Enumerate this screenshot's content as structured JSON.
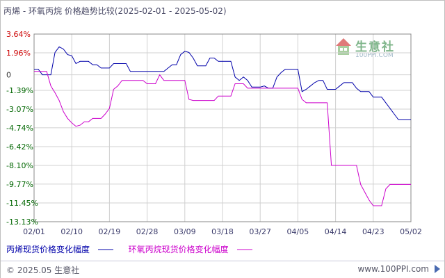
{
  "title": "丙烯 - 环氧丙烷 价格趋势比较(2025-02-01 - 2025-05-02)",
  "watermark": {
    "name": "生意社",
    "url": "100PPI.COM"
  },
  "footer": {
    "copyright": "© 2025.05 生意社",
    "url": "www.100PPI.com"
  },
  "colors": {
    "series1": "#0000aa",
    "series2": "#cc00cc",
    "grid": "#d0d0d0",
    "axis": "#888888"
  },
  "chart_data": {
    "type": "line",
    "title": "丙烯 - 环氧丙烷 价格趋势比较(2025-02-01 - 2025-05-02)",
    "xlabel": "",
    "ylabel": "",
    "x_range": [
      "02/01",
      "05/02"
    ],
    "x_ticks": [
      "02/01",
      "02/10",
      "02/19",
      "02/28",
      "03/09",
      "03/18",
      "03/27",
      "04/05",
      "04/14",
      "04/23",
      "05/02"
    ],
    "y_ticks": [
      "3.64%",
      "1.96%",
      "0",
      "-1.39%",
      "-3.07%",
      "-4.74%",
      "-6.42%",
      "-8.10%",
      "-9.77%",
      "-11.45%",
      "-13.13%"
    ],
    "ylim": [
      -13.13,
      3.64
    ],
    "grid": true,
    "legend_position": "bottom",
    "series": [
      {
        "name": "丙烯现货价格变化幅度",
        "color": "#0000aa",
        "points": [
          [
            "02/01",
            0.5
          ],
          [
            "02/02",
            0.5
          ],
          [
            "02/03",
            0.0
          ],
          [
            "02/04",
            0.0
          ],
          [
            "02/05",
            0.0
          ],
          [
            "02/06",
            2.0
          ],
          [
            "02/07",
            2.5
          ],
          [
            "02/08",
            2.3
          ],
          [
            "02/09",
            1.8
          ],
          [
            "02/10",
            1.7
          ],
          [
            "02/11",
            1.0
          ],
          [
            "02/12",
            1.2
          ],
          [
            "02/13",
            1.2
          ],
          [
            "02/14",
            1.2
          ],
          [
            "02/15",
            0.9
          ],
          [
            "02/16",
            0.9
          ],
          [
            "02/17",
            0.6
          ],
          [
            "02/18",
            0.6
          ],
          [
            "02/19",
            0.6
          ],
          [
            "02/20",
            1.0
          ],
          [
            "02/21",
            1.0
          ],
          [
            "02/22",
            1.0
          ],
          [
            "02/23",
            1.0
          ],
          [
            "02/24",
            0.3
          ],
          [
            "02/25",
            0.3
          ],
          [
            "02/26",
            0.3
          ],
          [
            "02/27",
            0.3
          ],
          [
            "02/28",
            0.3
          ],
          [
            "03/01",
            0.3
          ],
          [
            "03/02",
            0.3
          ],
          [
            "03/03",
            0.3
          ],
          [
            "03/04",
            0.3
          ],
          [
            "03/05",
            0.6
          ],
          [
            "03/06",
            0.9
          ],
          [
            "03/07",
            0.9
          ],
          [
            "03/08",
            1.8
          ],
          [
            "03/09",
            2.1
          ],
          [
            "03/10",
            2.0
          ],
          [
            "03/11",
            1.5
          ],
          [
            "03/12",
            0.8
          ],
          [
            "03/13",
            0.8
          ],
          [
            "03/14",
            0.8
          ],
          [
            "03/15",
            1.5
          ],
          [
            "03/16",
            1.5
          ],
          [
            "03/17",
            1.2
          ],
          [
            "03/18",
            1.2
          ],
          [
            "03/19",
            1.2
          ],
          [
            "03/20",
            1.2
          ],
          [
            "03/21",
            -0.2
          ],
          [
            "03/22",
            -0.5
          ],
          [
            "03/23",
            -0.2
          ],
          [
            "03/24",
            -0.5
          ],
          [
            "03/25",
            -1.1
          ],
          [
            "03/26",
            -1.1
          ],
          [
            "03/27",
            -1.1
          ],
          [
            "03/28",
            -1.0
          ],
          [
            "03/29",
            -1.2
          ],
          [
            "03/30",
            -1.2
          ],
          [
            "03/31",
            -0.2
          ],
          [
            "04/01",
            0.2
          ],
          [
            "04/02",
            0.5
          ],
          [
            "04/03",
            0.5
          ],
          [
            "04/04",
            0.5
          ],
          [
            "04/05",
            0.5
          ],
          [
            "04/06",
            -1.5
          ],
          [
            "04/07",
            -1.3
          ],
          [
            "04/08",
            -1.0
          ],
          [
            "04/09",
            -0.7
          ],
          [
            "04/10",
            -0.5
          ],
          [
            "04/11",
            -0.5
          ],
          [
            "04/12",
            -1.3
          ],
          [
            "04/13",
            -1.3
          ],
          [
            "04/14",
            -1.3
          ],
          [
            "04/15",
            -1.0
          ],
          [
            "04/16",
            -0.7
          ],
          [
            "04/17",
            -0.7
          ],
          [
            "04/18",
            -0.7
          ],
          [
            "04/19",
            -1.2
          ],
          [
            "04/20",
            -1.5
          ],
          [
            "04/21",
            -1.5
          ],
          [
            "04/22",
            -1.5
          ],
          [
            "04/23",
            -2.0
          ],
          [
            "04/24",
            -2.0
          ],
          [
            "04/25",
            -2.0
          ],
          [
            "04/26",
            -2.5
          ],
          [
            "04/27",
            -3.0
          ],
          [
            "04/28",
            -3.5
          ],
          [
            "04/29",
            -4.0
          ],
          [
            "04/30",
            -4.0
          ],
          [
            "05/01",
            -4.0
          ],
          [
            "05/02",
            -4.0
          ]
        ]
      },
      {
        "name": "环氧丙烷现货价格变化幅度",
        "color": "#cc00cc",
        "points": [
          [
            "02/01",
            0.3
          ],
          [
            "02/02",
            0.3
          ],
          [
            "02/03",
            0.3
          ],
          [
            "02/04",
            0.3
          ],
          [
            "02/05",
            -1.0
          ],
          [
            "02/06",
            -1.6
          ],
          [
            "02/07",
            -2.3
          ],
          [
            "02/08",
            -3.3
          ],
          [
            "02/09",
            -3.9
          ],
          [
            "02/10",
            -4.3
          ],
          [
            "02/11",
            -4.6
          ],
          [
            "02/12",
            -4.5
          ],
          [
            "02/13",
            -4.2
          ],
          [
            "02/14",
            -4.2
          ],
          [
            "02/15",
            -3.9
          ],
          [
            "02/16",
            -3.9
          ],
          [
            "02/17",
            -3.9
          ],
          [
            "02/18",
            -3.5
          ],
          [
            "02/19",
            -3.0
          ],
          [
            "02/20",
            -1.3
          ],
          [
            "02/21",
            -1.0
          ],
          [
            "02/22",
            -0.5
          ],
          [
            "02/23",
            -0.5
          ],
          [
            "02/24",
            -0.5
          ],
          [
            "02/25",
            -0.5
          ],
          [
            "02/26",
            -0.5
          ],
          [
            "02/27",
            -0.5
          ],
          [
            "02/28",
            -0.8
          ],
          [
            "03/01",
            -0.8
          ],
          [
            "03/02",
            -0.8
          ],
          [
            "03/03",
            0.0
          ],
          [
            "03/04",
            -0.5
          ],
          [
            "03/05",
            -0.5
          ],
          [
            "03/06",
            -0.5
          ],
          [
            "03/07",
            -0.5
          ],
          [
            "03/08",
            -0.5
          ],
          [
            "03/09",
            -0.5
          ],
          [
            "03/10",
            -2.2
          ],
          [
            "03/11",
            -2.3
          ],
          [
            "03/12",
            -2.3
          ],
          [
            "03/13",
            -2.3
          ],
          [
            "03/14",
            -2.3
          ],
          [
            "03/15",
            -2.3
          ],
          [
            "03/16",
            -2.3
          ],
          [
            "03/17",
            -1.9
          ],
          [
            "03/18",
            -1.9
          ],
          [
            "03/19",
            -1.9
          ],
          [
            "03/20",
            -1.9
          ],
          [
            "03/21",
            -0.8
          ],
          [
            "03/22",
            -0.8
          ],
          [
            "03/23",
            -0.8
          ],
          [
            "03/24",
            -1.2
          ],
          [
            "03/25",
            -1.2
          ],
          [
            "03/26",
            -1.2
          ],
          [
            "03/27",
            -1.2
          ],
          [
            "03/28",
            -1.2
          ],
          [
            "03/29",
            -1.2
          ],
          [
            "03/30",
            -1.2
          ],
          [
            "03/31",
            -1.2
          ],
          [
            "04/01",
            -1.2
          ],
          [
            "04/02",
            -1.2
          ],
          [
            "04/03",
            -1.2
          ],
          [
            "04/04",
            -1.2
          ],
          [
            "04/05",
            -1.2
          ],
          [
            "04/06",
            -2.2
          ],
          [
            "04/07",
            -2.5
          ],
          [
            "04/08",
            -2.5
          ],
          [
            "04/09",
            -2.5
          ],
          [
            "04/10",
            -2.5
          ],
          [
            "04/11",
            -2.5
          ],
          [
            "04/12",
            -2.5
          ],
          [
            "04/13",
            -8.1
          ],
          [
            "04/14",
            -8.1
          ],
          [
            "04/15",
            -8.1
          ],
          [
            "04/16",
            -8.1
          ],
          [
            "04/17",
            -8.1
          ],
          [
            "04/18",
            -8.1
          ],
          [
            "04/19",
            -8.1
          ],
          [
            "04/20",
            -9.8
          ],
          [
            "04/21",
            -10.5
          ],
          [
            "04/22",
            -11.2
          ],
          [
            "04/23",
            -11.7
          ],
          [
            "04/24",
            -11.7
          ],
          [
            "04/25",
            -11.7
          ],
          [
            "04/26",
            -10.2
          ],
          [
            "04/27",
            -9.8
          ],
          [
            "04/28",
            -9.8
          ],
          [
            "04/29",
            -9.8
          ],
          [
            "04/30",
            -9.8
          ],
          [
            "05/01",
            -9.8
          ],
          [
            "05/02",
            -9.8
          ]
        ]
      }
    ]
  }
}
